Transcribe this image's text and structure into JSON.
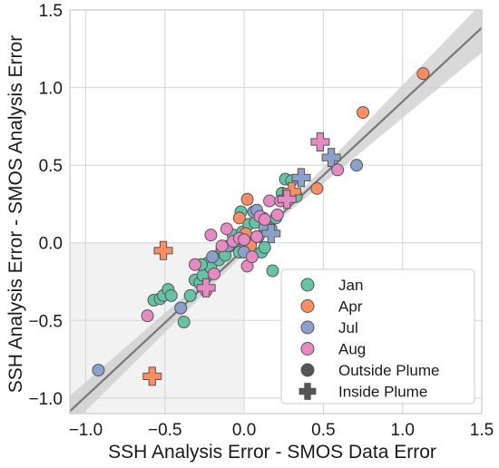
{
  "chart_data": {
    "type": "scatter",
    "xlabel": "SSH Analysis Error - SMOS Data Error",
    "ylabel": "SSH Analysis Error - SMOS Analysis Error",
    "xlim": [
      -1.1,
      1.5
    ],
    "ylim": [
      -1.1,
      1.5
    ],
    "x_ticks": [
      "−1.0",
      "−0.5",
      "0.0",
      "0.5",
      "1.0",
      "1.5"
    ],
    "y_ticks": [
      "−1.0",
      "−0.5",
      "0.0",
      "0.5",
      "1.0",
      "1.5"
    ],
    "x_tick_values": [
      -1.0,
      -0.5,
      0.0,
      0.5,
      1.0,
      1.5
    ],
    "y_tick_values": [
      -1.0,
      -0.5,
      0.0,
      0.5,
      1.0,
      1.5
    ],
    "grid": true,
    "shaded_quadrant": "negative x and negative y",
    "fit_line": {
      "slope": 0.95,
      "intercept": -0.04,
      "color": "#777777",
      "band_color": "#cccccc",
      "band_halfwidth": [
        0.1,
        0.02,
        0.16
      ]
    },
    "legend_position": "bottom-right",
    "legend": [
      {
        "label": "Jan",
        "kind": "circle",
        "color": "#66c2a5"
      },
      {
        "label": "Apr",
        "kind": "circle",
        "color": "#fc8d62"
      },
      {
        "label": "Jul",
        "kind": "circle",
        "color": "#8da0cb"
      },
      {
        "label": "Aug",
        "kind": "circle",
        "color": "#e78ac3"
      },
      {
        "label": "Outside Plume",
        "kind": "circle",
        "color": "#555555"
      },
      {
        "label": "Inside Plume",
        "kind": "plus",
        "color": "#555555"
      }
    ],
    "series": [
      {
        "name": "Jan",
        "color": "#66c2a5",
        "outside": [
          [
            -0.57,
            -0.37
          ],
          [
            -0.53,
            -0.36
          ],
          [
            -0.51,
            -0.34
          ],
          [
            -0.48,
            -0.3
          ],
          [
            -0.46,
            -0.34
          ],
          [
            -0.38,
            -0.51
          ],
          [
            -0.34,
            -0.34
          ],
          [
            -0.31,
            -0.24
          ],
          [
            -0.28,
            -0.26
          ],
          [
            -0.26,
            -0.21
          ],
          [
            -0.23,
            -0.13
          ],
          [
            -0.21,
            -0.16
          ],
          [
            -0.19,
            -0.09
          ],
          [
            -0.16,
            -0.11
          ],
          [
            -0.14,
            -0.04
          ],
          [
            -0.12,
            -0.08
          ],
          [
            -0.09,
            -0.02
          ],
          [
            -0.07,
            0.05
          ],
          [
            -0.05,
            -0.01
          ],
          [
            -0.03,
            -0.06
          ],
          [
            -0.01,
            0.07
          ],
          [
            0.01,
            -0.01
          ],
          [
            0.03,
            0.12
          ],
          [
            0.05,
            0.02
          ],
          [
            0.07,
            0.13
          ],
          [
            0.09,
            0.04
          ],
          [
            0.11,
            -0.06
          ],
          [
            0.13,
            -0.03
          ],
          [
            0.15,
            0.12
          ],
          [
            0.17,
            0.09
          ],
          [
            0.18,
            -0.18
          ],
          [
            0.2,
            0.16
          ],
          [
            0.24,
            0.32
          ],
          [
            0.26,
            0.41
          ],
          [
            0.3,
            0.4
          ],
          [
            0.33,
            0.3
          ],
          [
            0.12,
            0.16
          ],
          [
            -0.02,
            0.2
          ],
          [
            -0.27,
            -0.14
          ]
        ],
        "inside": []
      },
      {
        "name": "Apr",
        "color": "#fc8d62",
        "outside": [
          [
            1.13,
            1.09
          ],
          [
            0.75,
            0.84
          ],
          [
            0.46,
            0.35
          ],
          [
            0.02,
            0.28
          ],
          [
            -0.03,
            0.16
          ],
          [
            0.01,
            0.06
          ],
          [
            0.04,
            -0.02
          ]
        ],
        "inside": [
          [
            -0.51,
            -0.05
          ],
          [
            -0.58,
            -0.86
          ],
          [
            0.3,
            0.33
          ]
        ]
      },
      {
        "name": "Jul",
        "color": "#8da0cb",
        "outside": [
          [
            -0.92,
            -0.82
          ],
          [
            -0.4,
            -0.42
          ],
          [
            -0.2,
            -0.09
          ],
          [
            -0.1,
            -0.02
          ],
          [
            0.06,
            0.2
          ],
          [
            0.08,
            0.21
          ],
          [
            0.13,
            0.1
          ],
          [
            0.71,
            0.5
          ],
          [
            0.0,
            -0.06
          ]
        ],
        "inside": [
          [
            0.55,
            0.55
          ],
          [
            0.36,
            0.42
          ],
          [
            0.17,
            0.06
          ]
        ]
      },
      {
        "name": "Aug",
        "color": "#e78ac3",
        "outside": [
          [
            -0.61,
            -0.47
          ],
          [
            -0.31,
            -0.14
          ],
          [
            -0.21,
            0.05
          ],
          [
            -0.19,
            -0.2
          ],
          [
            -0.14,
            -0.02
          ],
          [
            -0.11,
            0.09
          ],
          [
            -0.07,
            0.01
          ],
          [
            -0.03,
            0.03
          ],
          [
            0.0,
            0.02
          ],
          [
            0.02,
            -0.15
          ],
          [
            0.05,
            -0.09
          ],
          [
            0.08,
            0.04
          ],
          [
            0.1,
            0.17
          ],
          [
            0.13,
            0.15
          ],
          [
            0.16,
            0.27
          ],
          [
            0.21,
            0.18
          ],
          [
            0.23,
            0.27
          ],
          [
            0.59,
            0.47
          ],
          [
            -0.24,
            -0.31
          ]
        ],
        "inside": [
          [
            0.48,
            0.65
          ],
          [
            -0.24,
            -0.29
          ],
          [
            0.27,
            0.28
          ]
        ]
      }
    ]
  }
}
